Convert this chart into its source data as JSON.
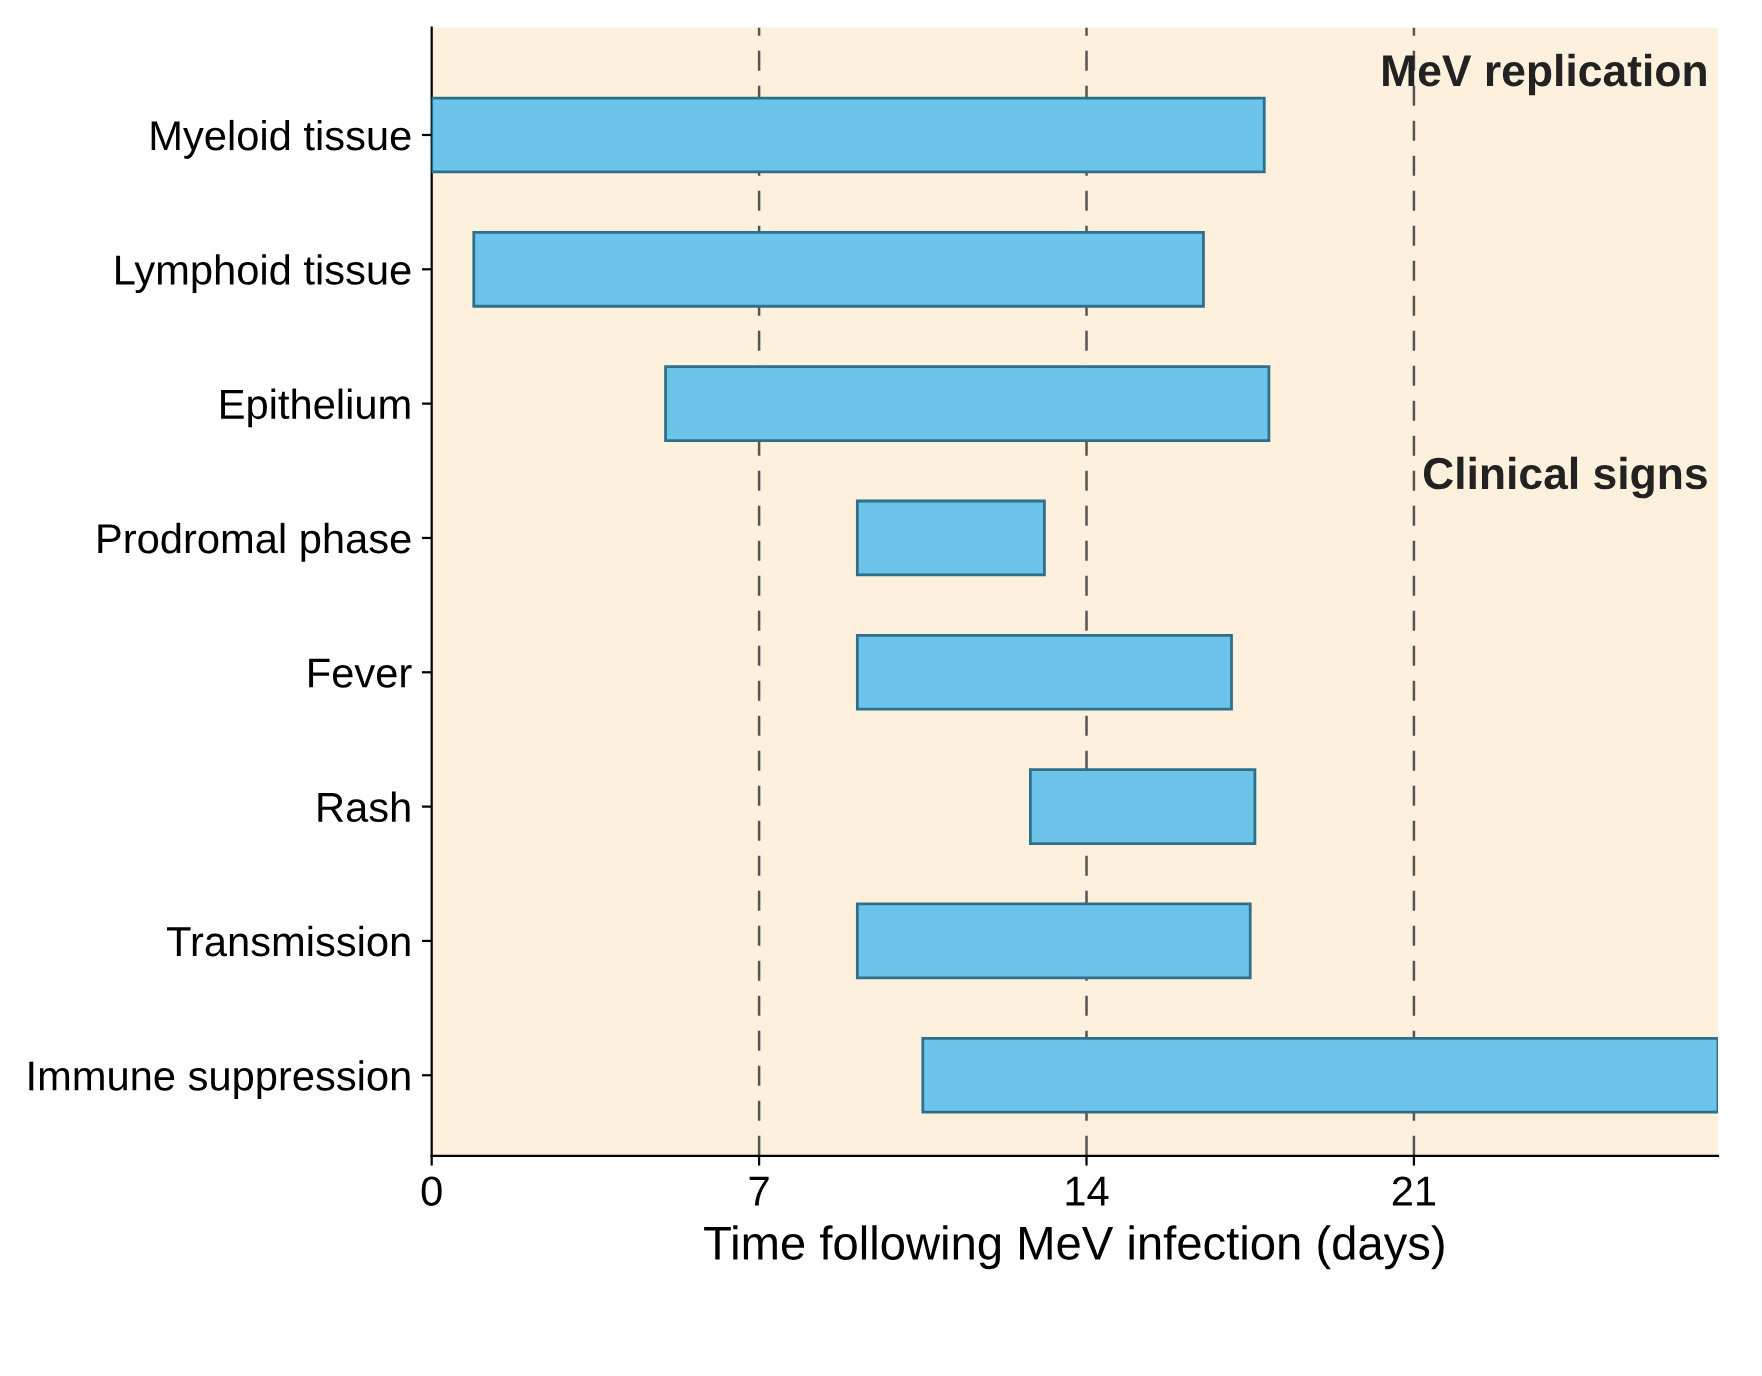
{
  "chart_data": {
    "type": "bar",
    "orientation": "horizontal",
    "xlabel": "Time following MeV infection (days)",
    "categories": [
      "Myeloid tissue",
      "Lymphoid tissue",
      "Epithelium",
      "Prodromal phase",
      "Fever",
      "Rash",
      "Transmission",
      "Immune suppression"
    ],
    "base": [
      0,
      0.9,
      5,
      9.1,
      9.1,
      12.8,
      9.1,
      10.5
    ],
    "values": [
      17.8,
      15.6,
      12.9,
      4.0,
      8.0,
      4.8,
      8.4,
      17.0
    ],
    "color": "#6cc4ea",
    "xlim": [
      0,
      27.5
    ],
    "xticks": [
      0,
      7,
      14,
      21
    ],
    "ref_lines": [
      {
        "axis": "x",
        "value": 7,
        "line_style": "dashed",
        "color": "#555555"
      },
      {
        "axis": "x",
        "value": 14,
        "line_style": "dashed",
        "color": "#555555"
      },
      {
        "axis": "x",
        "value": 21,
        "line_style": "dashed",
        "color": "#555555"
      }
    ],
    "annotations": [
      "MeV replication",
      "Clinical signs"
    ],
    "grid": false,
    "legend": false
  }
}
